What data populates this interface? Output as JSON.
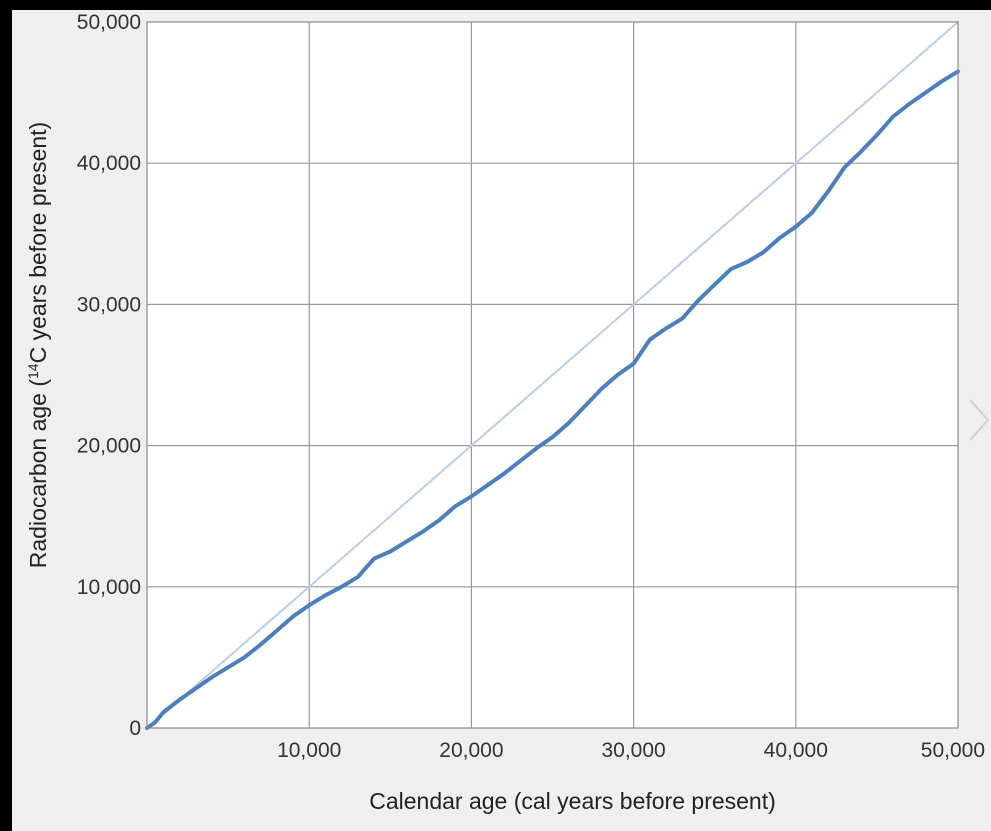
{
  "chart_data": {
    "type": "line",
    "xlabel": "Calendar age (cal years before present)",
    "ylabel_parts": [
      "Radiocarbon age (",
      "14",
      "C years before present)"
    ],
    "xlim": [
      0,
      50000
    ],
    "ylim": [
      0,
      50000
    ],
    "x_ticks": [
      0,
      10000,
      20000,
      30000,
      40000,
      50000
    ],
    "y_ticks": [
      0,
      10000,
      20000,
      30000,
      40000,
      50000
    ],
    "x_tick_labels": [
      "10,000",
      "20,000",
      "30,000",
      "40,000",
      "50,000"
    ],
    "y_tick_labels": [
      "0",
      "10,000",
      "20,000",
      "30,000",
      "40,000",
      "50,000"
    ],
    "grid": true,
    "series": [
      {
        "role": "calibration-curve",
        "color": "#4a7fc1",
        "x": [
          0,
          500,
          1000,
          2000,
          3000,
          4000,
          5000,
          6000,
          7000,
          8000,
          9000,
          10000,
          11000,
          12000,
          13000,
          14000,
          15000,
          16000,
          17000,
          18000,
          19000,
          20000,
          21000,
          22000,
          23000,
          24000,
          25000,
          26000,
          27000,
          28000,
          29000,
          30000,
          31000,
          32000,
          33000,
          34000,
          35000,
          36000,
          37000,
          38000,
          39000,
          40000,
          41000,
          42000,
          43000,
          44000,
          45000,
          46000,
          47000,
          48000,
          49000,
          50000
        ],
        "y": [
          0,
          400,
          1100,
          2000,
          2800,
          3600,
          4300,
          5000,
          5900,
          6900,
          7900,
          8700,
          9400,
          10000,
          10700,
          12000,
          12500,
          13200,
          13900,
          14700,
          15700,
          16400,
          17200,
          18000,
          18900,
          19800,
          20600,
          21600,
          22800,
          24000,
          25000,
          25800,
          27500,
          28300,
          29000,
          30300,
          31400,
          32500,
          33000,
          33700,
          34700,
          35500,
          36500,
          38000,
          39700,
          40800,
          42000,
          43300,
          44200,
          45000,
          45800,
          46500
        ]
      },
      {
        "role": "one-to-one-line",
        "color": "#b9cfe8",
        "x": [
          0,
          50000
        ],
        "y": [
          0,
          50000
        ]
      }
    ]
  },
  "ui": {
    "nav_arrow_color": "#cfcfcf",
    "nav_arrow_icon": "chevron-right-icon"
  }
}
